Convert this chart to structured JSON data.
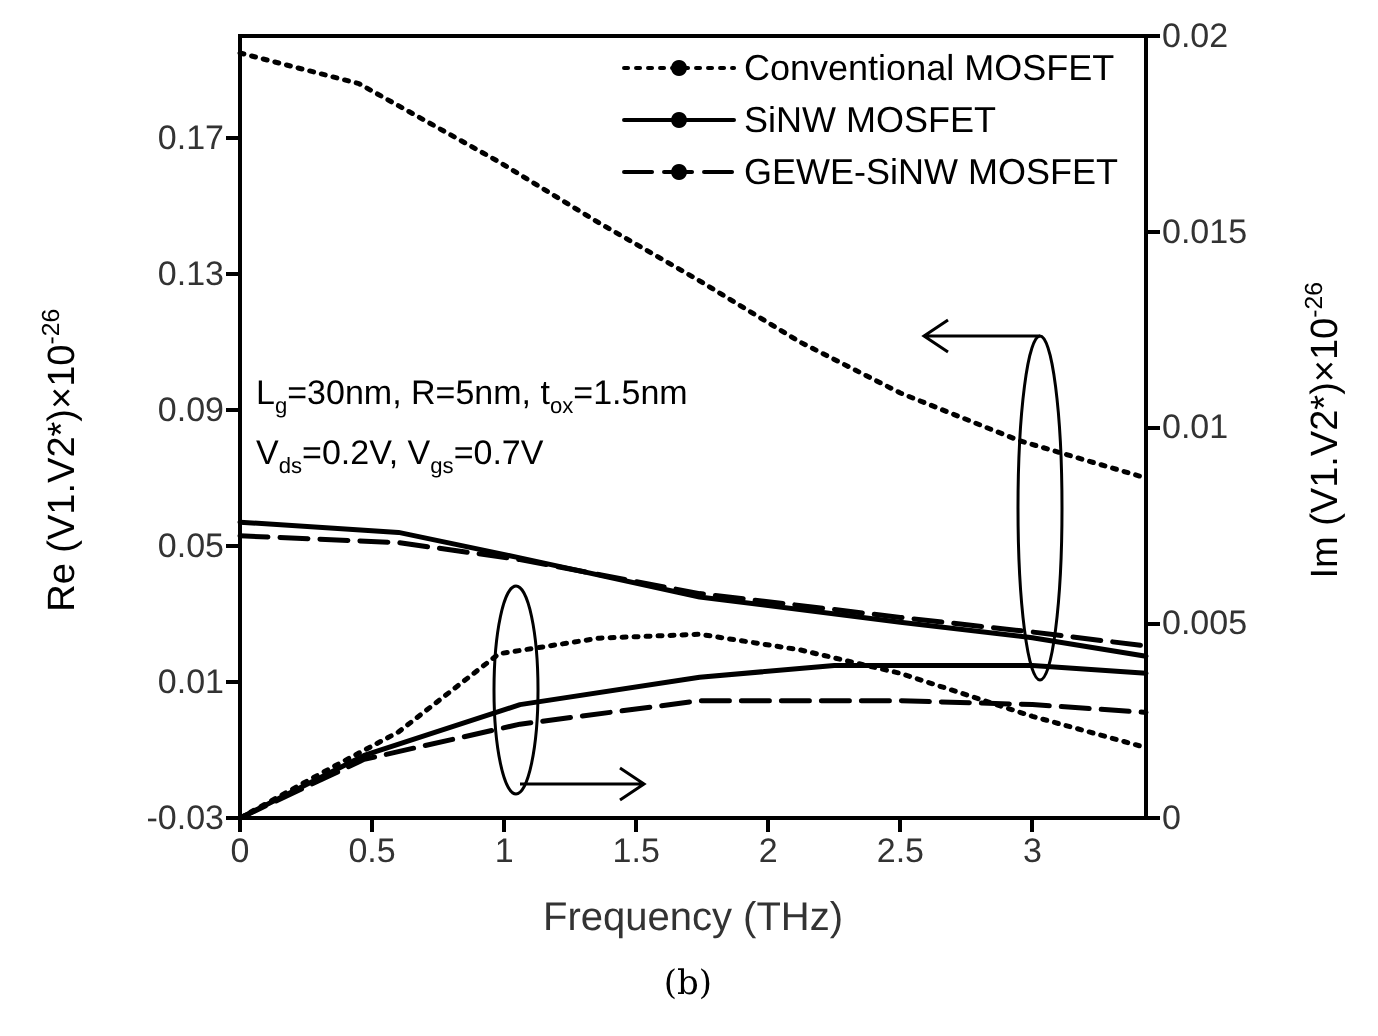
{
  "chart_data": {
    "type": "line",
    "xlabel": "Frequency (THz)",
    "ylabel": "Re (V1.V2*)×10$^{-26}$",
    "y2label": "Im (V1.V2*)×10$^{-26}$",
    "annotations": [
      "L$_{g}$=30nm, R=5nm, t$_{ox}$=1.5nm",
      "V$_{ds}$=0.2V, V$_{gs}$=0.7V",
      "(b)"
    ],
    "xlim": [
      0,
      3.43
    ],
    "xticks": [
      0,
      0.5,
      1,
      1.5,
      2,
      2.5,
      3
    ],
    "ylim": [
      -0.03,
      0.2
    ],
    "yticks": [
      -0.03,
      0.01,
      0.05,
      0.09,
      0.13,
      0.17
    ],
    "y2lim": [
      0,
      0.02
    ],
    "y2ticks": [
      0,
      0.005,
      0.01,
      0.015,
      0.02
    ],
    "grid": false,
    "legend": "top right",
    "marker": "none",
    "series": [
      {
        "name": "Conventional MOSFET",
        "color": "#000000",
        "line_style": "dotted",
        "x": [
          0,
          0.45,
          0.98,
          1.36,
          1.74,
          2.12,
          2.5,
          2.95,
          3.43
        ],
        "values": [
          0.195,
          0.186,
          0.163,
          0.145,
          0.128,
          0.11,
          0.095,
          0.081,
          0.07
        ]
      },
      {
        "name": "SiNW MOSFET",
        "color": "#000000",
        "line_style": "solid",
        "x": [
          0,
          0.6,
          1.06,
          1.74,
          2.5,
          3.0,
          3.43
        ],
        "values": [
          0.057,
          0.054,
          0.0465,
          0.035,
          0.0276,
          0.023,
          0.0176
        ]
      },
      {
        "name": "GEWE-SiNW MOSFET",
        "color": "#000000",
        "line_style": "dashed",
        "x": [
          0,
          0.6,
          1.06,
          1.74,
          2.5,
          3.0,
          3.43
        ],
        "values": [
          0.053,
          0.051,
          0.046,
          0.036,
          0.029,
          0.0247,
          0.0206
        ]
      },
      {
        "color": "#000000",
        "line_style": "dotted",
        "axis": "y2",
        "x": [
          0,
          0.35,
          0.6,
          0.98,
          1.36,
          1.74,
          2.12,
          2.5,
          3.0,
          3.43
        ],
        "values": [
          0,
          0.0013,
          0.0022,
          0.0042,
          0.0046,
          0.0047,
          0.0043,
          0.0037,
          0.0026,
          0.0018
        ]
      },
      {
        "color": "#000000",
        "line_style": "solid",
        "axis": "y2",
        "x": [
          0,
          0.47,
          1.06,
          1.74,
          2.25,
          3.0,
          3.43
        ],
        "values": [
          0,
          0.0016,
          0.0029,
          0.0036,
          0.0039,
          0.0039,
          0.0037
        ]
      },
      {
        "color": "#000000",
        "line_style": "dashed",
        "axis": "y2",
        "x": [
          0,
          0.47,
          1.06,
          1.74,
          2.5,
          3.0,
          3.43
        ],
        "values": [
          0,
          0.0015,
          0.0024,
          0.003,
          0.003,
          0.0029,
          0.0027
        ]
      }
    ]
  }
}
